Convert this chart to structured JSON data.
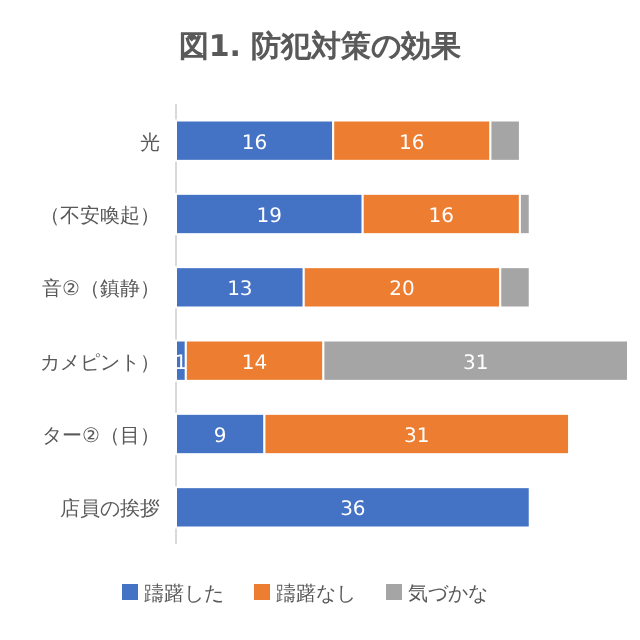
{
  "chart_data": {
    "type": "bar",
    "title": "図1. 防犯対策の効果",
    "orientation": "horizontal",
    "stacked": true,
    "legend": "bottom",
    "categories": [
      "光",
      "（不安喚起）",
      "音②（鎮静）",
      "カメピント）",
      "ター②（目）",
      "店員の挨拶"
    ],
    "series": [
      {
        "name": "躊躇した",
        "color": "#4472c4",
        "values": [
          16,
          19,
          13,
          1,
          9,
          36
        ],
        "value_labels": [
          "16",
          "19",
          "13",
          "1",
          "9",
          "36"
        ]
      },
      {
        "name": "躊躇なし",
        "color": "#ed7d31",
        "values": [
          16,
          16,
          20,
          14,
          31,
          null
        ],
        "value_labels": [
          "16",
          "16",
          "20",
          "14",
          "31",
          null
        ]
      },
      {
        "name": "気づかな",
        "color": "#a5a5a5",
        "values": [
          3,
          1,
          3,
          31,
          null,
          null
        ],
        "value_labels": [
          null,
          null,
          null,
          "31",
          null,
          null
        ]
      }
    ]
  }
}
